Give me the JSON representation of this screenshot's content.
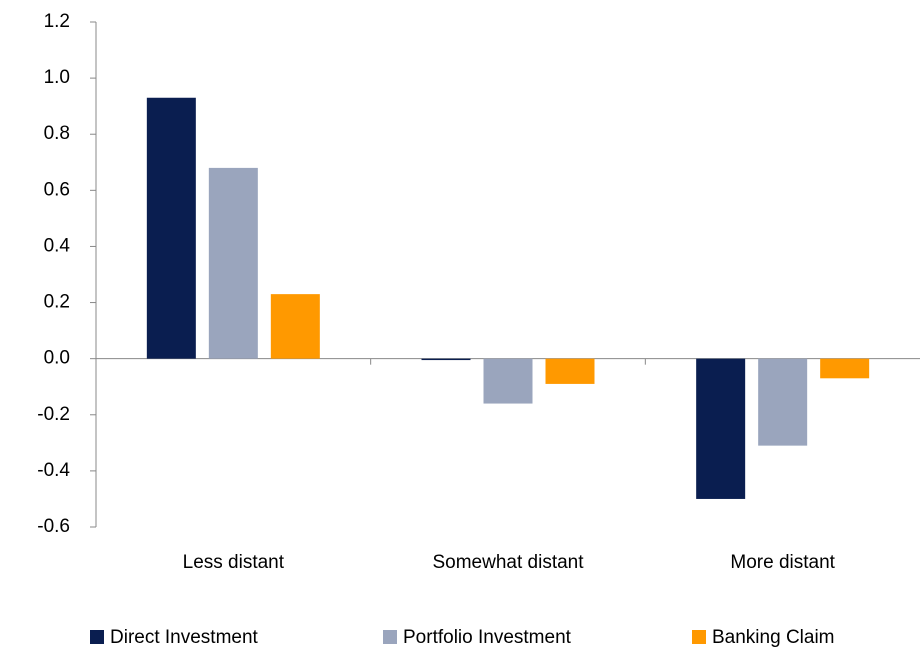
{
  "chart_data": {
    "type": "bar",
    "categories": [
      "Less distant",
      "Somewhat distant",
      "More distant"
    ],
    "series": [
      {
        "name": "Direct Investment",
        "color": "#0a1e50",
        "values": [
          0.93,
          -0.005,
          -0.5
        ]
      },
      {
        "name": "Portfolio Investment",
        "color": "#9aa5bd",
        "values": [
          0.68,
          -0.16,
          -0.31
        ]
      },
      {
        "name": "Banking Claim",
        "color": "#ff9900",
        "values": [
          0.23,
          -0.09,
          -0.07
        ]
      }
    ],
    "ylim": [
      -0.6,
      1.2
    ],
    "yticks": [
      1.2,
      {
        "value": 1,
        "label": "1.0"
      },
      0.8,
      0.6,
      0.4,
      0.2,
      {
        "value": 0,
        "label": "0.0"
      },
      -0.2,
      -0.4,
      -0.6
    ],
    "legend": "bottom"
  }
}
